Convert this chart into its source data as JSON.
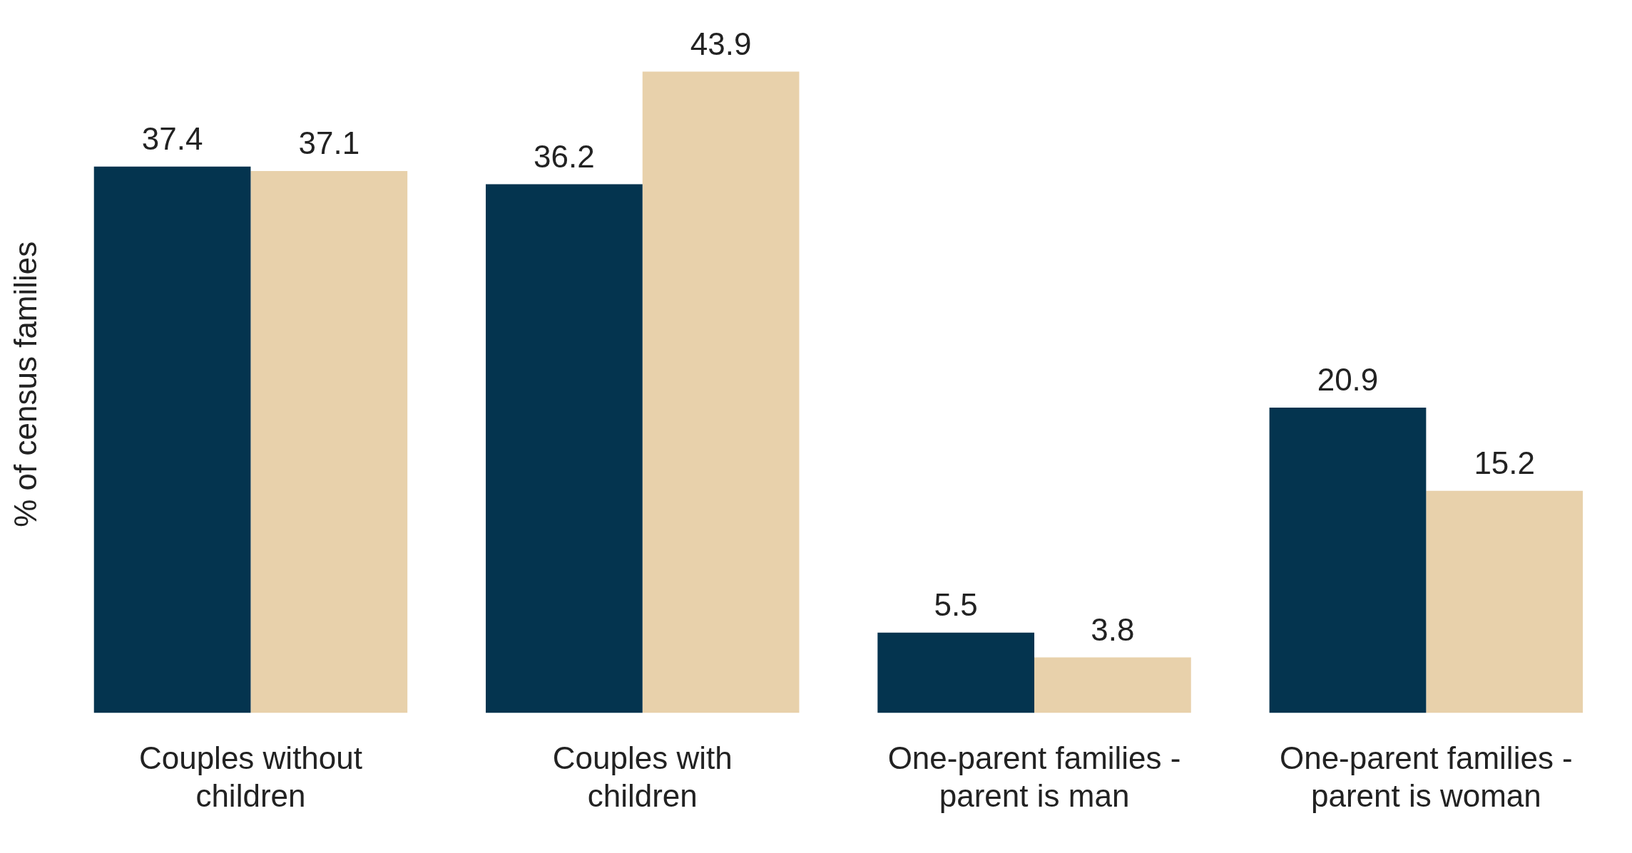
{
  "chart_data": {
    "type": "bar",
    "ylabel": "% of census families",
    "categories": [
      "Couples without children",
      "Couples with children",
      "One-parent families - parent is man",
      "One-parent families - parent is woman"
    ],
    "series": [
      {
        "color": "#04344f",
        "values": [
          37.4,
          36.2,
          5.5,
          20.9
        ]
      },
      {
        "color": "#e8d1ab",
        "values": [
          37.1,
          43.9,
          3.8,
          15.2
        ]
      }
    ],
    "data_labels": true,
    "tick_labels": "x",
    "grid": false,
    "legend": false
  }
}
